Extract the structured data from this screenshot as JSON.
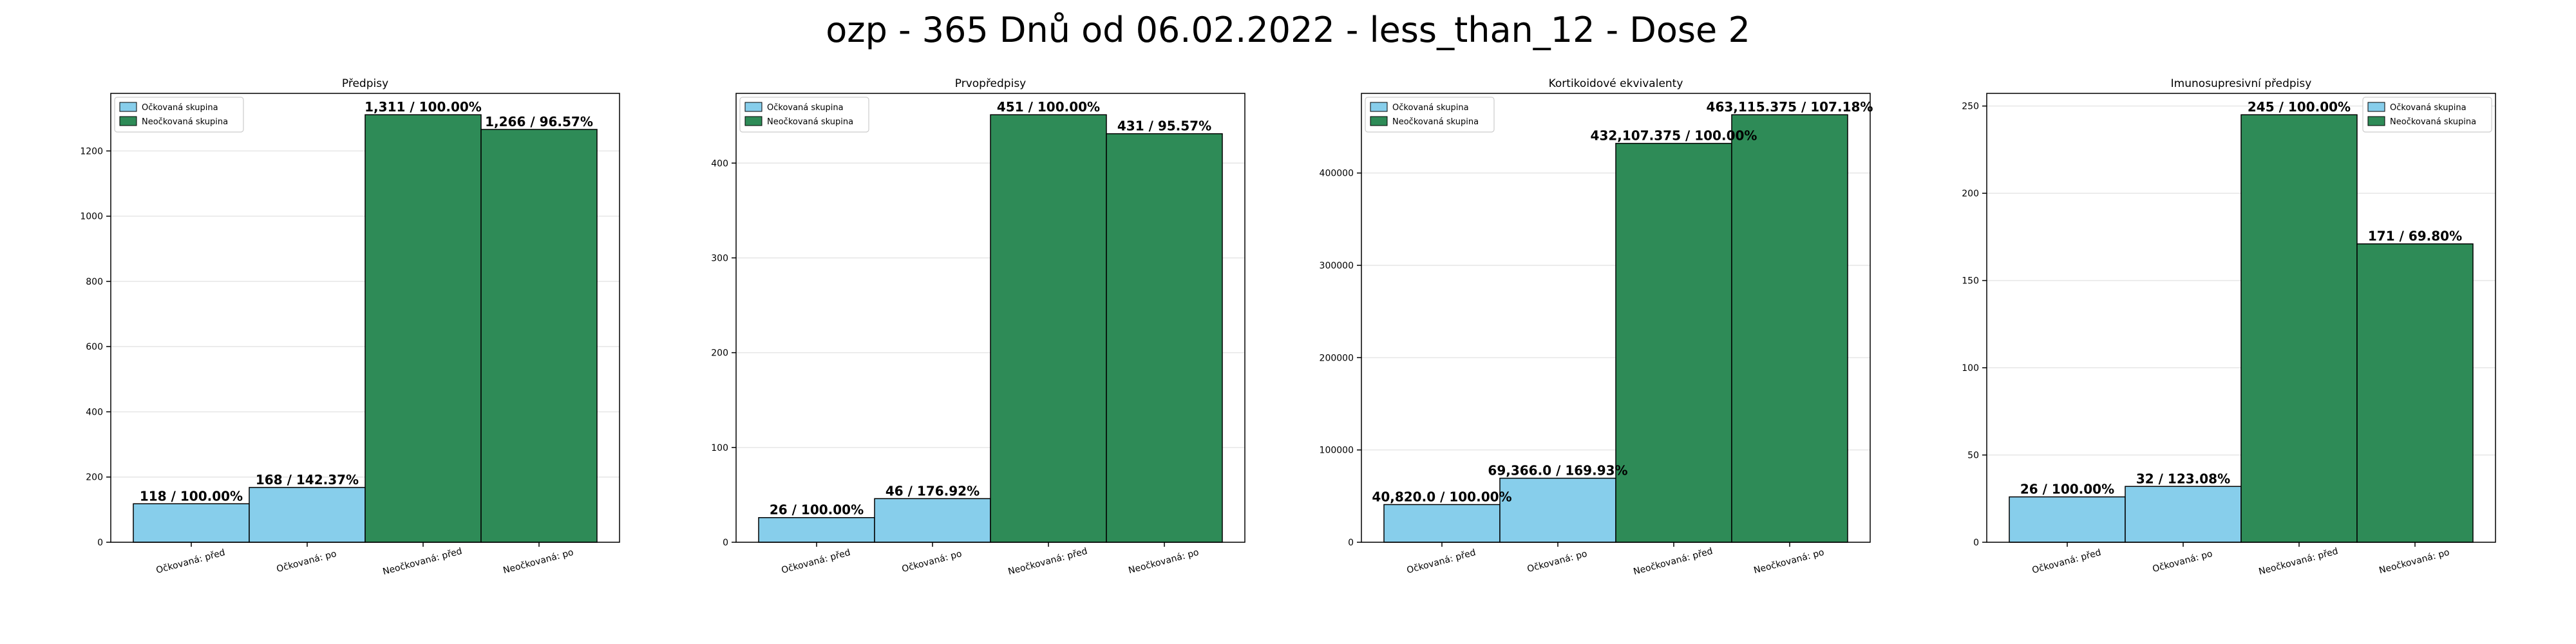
{
  "suptitle": "ozp - 365 Dnů od 06.02.2022 - less_than_12 - Dose 2",
  "colors": {
    "vaccinated": "#87ceeb",
    "unvaccinated": "#2e8b57",
    "edge": "#000000",
    "grid": "#e6e6e6"
  },
  "chart_data": [
    {
      "type": "bar",
      "title": "Předpisy",
      "categories": [
        "Očkovaná: před",
        "Očkovaná: po",
        "Neočkovaná: před",
        "Neočkovaná: po"
      ],
      "values": [
        118,
        168,
        1311,
        1266
      ],
      "bar_labels": [
        "118 / 100.00%",
        "168 / 142.37%",
        "1,311 / 100.00%",
        "1,266 / 96.57%"
      ],
      "bar_groups": [
        "vaccinated",
        "vaccinated",
        "unvaccinated",
        "unvaccinated"
      ],
      "legend": [
        "Očkovaná skupina",
        "Neočkovaná skupina"
      ],
      "legend_position": "top-left",
      "ylim": [
        0,
        1376.55
      ],
      "yticks": [
        0,
        200,
        400,
        600,
        800,
        1000,
        1200
      ],
      "ytick_labels": [
        "0",
        "200",
        "400",
        "600",
        "800",
        "1000",
        "1200"
      ],
      "grid": "y"
    },
    {
      "type": "bar",
      "title": "Prvopředpisy",
      "categories": [
        "Očkovaná: před",
        "Očkovaná: po",
        "Neočkovaná: před",
        "Neočkovaná: po"
      ],
      "values": [
        26,
        46,
        451,
        431
      ],
      "bar_labels": [
        "26 / 100.00%",
        "46 / 176.92%",
        "451 / 100.00%",
        "431 / 95.57%"
      ],
      "bar_groups": [
        "vaccinated",
        "vaccinated",
        "unvaccinated",
        "unvaccinated"
      ],
      "legend": [
        "Očkovaná skupina",
        "Neočkovaná skupina"
      ],
      "legend_position": "top-left",
      "ylim": [
        0,
        473.55
      ],
      "yticks": [
        0,
        100,
        200,
        300,
        400
      ],
      "ytick_labels": [
        "0",
        "100",
        "200",
        "300",
        "400"
      ],
      "grid": "y"
    },
    {
      "type": "bar",
      "title": "Kortikoidové ekvivalenty",
      "categories": [
        "Očkovaná: před",
        "Očkovaná: po",
        "Neočkovaná: před",
        "Neočkovaná: po"
      ],
      "values": [
        40820.0,
        69366.0,
        432107.375,
        463115.375
      ],
      "bar_labels": [
        "40,820.0 / 100.00%",
        "69,366.0 / 169.93%",
        "432,107.375 / 100.00%",
        "463,115.375 / 107.18%"
      ],
      "bar_groups": [
        "vaccinated",
        "vaccinated",
        "unvaccinated",
        "unvaccinated"
      ],
      "legend": [
        "Očkovaná skupina",
        "Neočkovaná skupina"
      ],
      "legend_position": "top-left",
      "ylim": [
        0,
        486271
      ],
      "yticks": [
        0,
        100000,
        200000,
        300000,
        400000
      ],
      "ytick_labels": [
        "0",
        "100000",
        "200000",
        "300000",
        "400000"
      ],
      "grid": "y"
    },
    {
      "type": "bar",
      "title": "Imunosupresivní předpisy",
      "categories": [
        "Očkovaná: před",
        "Očkovaná: po",
        "Neočkovaná: před",
        "Neočkovaná: po"
      ],
      "values": [
        26,
        32,
        245,
        171
      ],
      "bar_labels": [
        "26 / 100.00%",
        "32 / 123.08%",
        "245 / 100.00%",
        "171 / 69.80%"
      ],
      "bar_groups": [
        "vaccinated",
        "vaccinated",
        "unvaccinated",
        "unvaccinated"
      ],
      "legend": [
        "Očkovaná skupina",
        "Neočkovaná skupina"
      ],
      "legend_position": "top-right",
      "ylim": [
        0,
        257.25
      ],
      "yticks": [
        0,
        50,
        100,
        150,
        200,
        250
      ],
      "ytick_labels": [
        "0",
        "50",
        "100",
        "150",
        "200",
        "250"
      ],
      "grid": "y"
    }
  ]
}
